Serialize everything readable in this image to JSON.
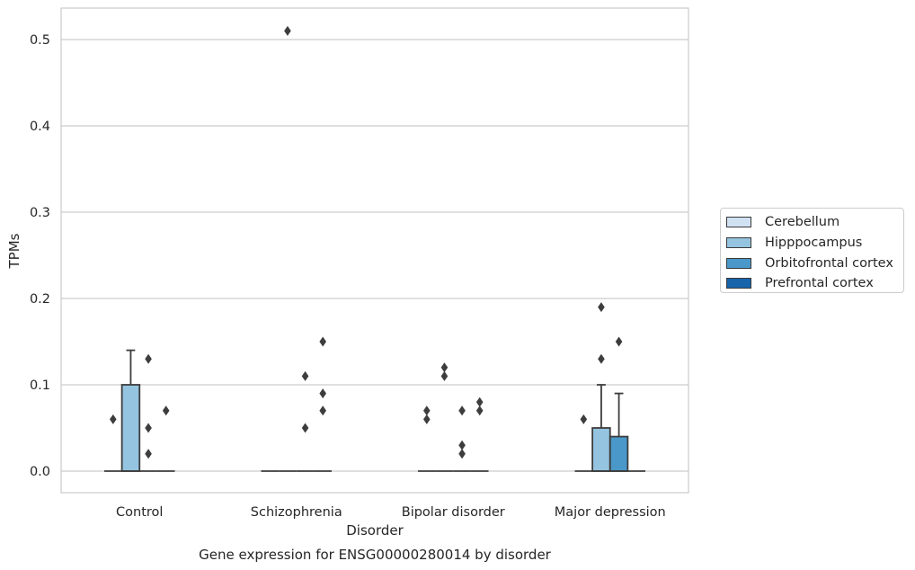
{
  "chart_data": {
    "type": "box",
    "title": "",
    "caption": "Gene expression for ENSG00000280014 by disorder",
    "xlabel": "Disorder",
    "ylabel": "TPMs",
    "categories": [
      "Control",
      "Schizophrenia",
      "Bipolar disorder",
      "Major depression"
    ],
    "ylim": [
      -0.025,
      0.535
    ],
    "yticks": [
      0.0,
      0.1,
      0.2,
      0.3,
      0.4,
      0.5
    ],
    "ytick_labels": [
      "0.0",
      "0.1",
      "0.2",
      "0.3",
      "0.4",
      "0.5"
    ],
    "grid": "horizontal",
    "legend_position": "right-center",
    "series": [
      {
        "name": "Cerebellum",
        "color": "#d0e1f2",
        "boxes": [
          {
            "q1": 0.0,
            "median": 0.0,
            "q3": 0.0,
            "whisker_low": 0.0,
            "whisker_high": 0.0,
            "outliers": [
              0.06
            ]
          },
          {
            "q1": 0.0,
            "median": 0.0,
            "q3": 0.0,
            "whisker_low": 0.0,
            "whisker_high": 0.0,
            "outliers": []
          },
          {
            "q1": 0.0,
            "median": 0.0,
            "q3": 0.0,
            "whisker_low": 0.0,
            "whisker_high": 0.0,
            "outliers": [
              0.06,
              0.07
            ]
          },
          {
            "q1": 0.0,
            "median": 0.0,
            "q3": 0.0,
            "whisker_low": 0.0,
            "whisker_high": 0.0,
            "outliers": [
              0.06
            ]
          }
        ]
      },
      {
        "name": "Hipppocampus",
        "color": "#94c4df",
        "boxes": [
          {
            "q1": 0.0,
            "median": 0.0,
            "q3": 0.1,
            "whisker_low": 0.0,
            "whisker_high": 0.14,
            "outliers": []
          },
          {
            "q1": 0.0,
            "median": 0.0,
            "q3": 0.0,
            "whisker_low": 0.0,
            "whisker_high": 0.0,
            "outliers": [
              0.51
            ]
          },
          {
            "q1": 0.0,
            "median": 0.0,
            "q3": 0.0,
            "whisker_low": 0.0,
            "whisker_high": 0.0,
            "outliers": [
              0.11,
              0.12
            ]
          },
          {
            "q1": 0.0,
            "median": 0.0,
            "q3": 0.05,
            "whisker_low": 0.0,
            "whisker_high": 0.1,
            "outliers": [
              0.13,
              0.19
            ]
          }
        ]
      },
      {
        "name": "Orbitofrontal cortex",
        "color": "#4a98c9",
        "boxes": [
          {
            "q1": 0.0,
            "median": 0.0,
            "q3": 0.0,
            "whisker_low": 0.0,
            "whisker_high": 0.0,
            "outliers": [
              0.02,
              0.05,
              0.13
            ]
          },
          {
            "q1": 0.0,
            "median": 0.0,
            "q3": 0.0,
            "whisker_low": 0.0,
            "whisker_high": 0.0,
            "outliers": [
              0.05,
              0.11
            ]
          },
          {
            "q1": 0.0,
            "median": 0.0,
            "q3": 0.0,
            "whisker_low": 0.0,
            "whisker_high": 0.0,
            "outliers": [
              0.02,
              0.03,
              0.07
            ]
          },
          {
            "q1": 0.0,
            "median": 0.0,
            "q3": 0.04,
            "whisker_low": 0.0,
            "whisker_high": 0.09,
            "outliers": [
              0.15
            ]
          }
        ]
      },
      {
        "name": "Prefrontal cortex",
        "color": "#1764ab",
        "boxes": [
          {
            "q1": 0.0,
            "median": 0.0,
            "q3": 0.0,
            "whisker_low": 0.0,
            "whisker_high": 0.0,
            "outliers": [
              0.07
            ]
          },
          {
            "q1": 0.0,
            "median": 0.0,
            "q3": 0.0,
            "whisker_low": 0.0,
            "whisker_high": 0.0,
            "outliers": [
              0.07,
              0.09,
              0.15
            ]
          },
          {
            "q1": 0.0,
            "median": 0.0,
            "q3": 0.0,
            "whisker_low": 0.0,
            "whisker_high": 0.0,
            "outliers": [
              0.07,
              0.08
            ]
          },
          {
            "q1": 0.0,
            "median": 0.0,
            "q3": 0.0,
            "whisker_low": 0.0,
            "whisker_high": 0.0,
            "outliers": []
          }
        ]
      }
    ]
  }
}
